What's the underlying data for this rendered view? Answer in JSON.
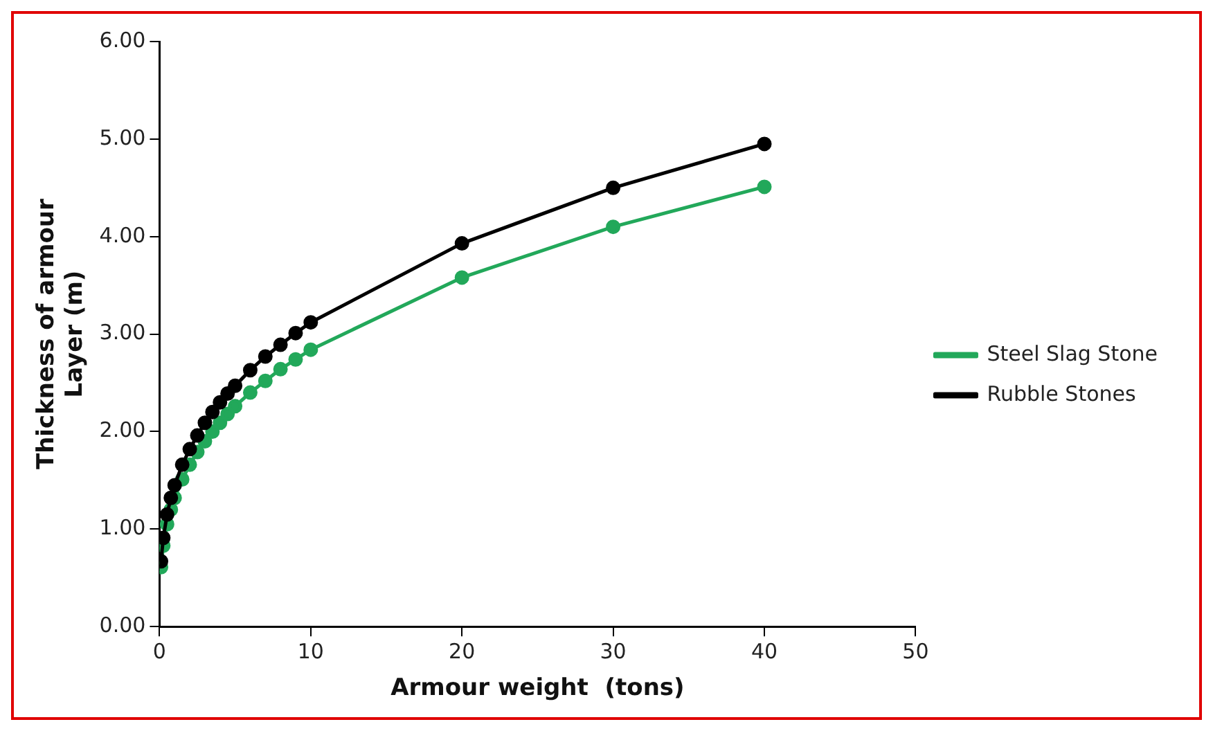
{
  "chart_data": {
    "type": "line",
    "xlabel": "Armour weight  (tons)",
    "ylabel": "Thickness of armour Layer (m)",
    "xlim": [
      0,
      50
    ],
    "xticks": [
      0,
      10,
      20,
      30,
      40,
      50
    ],
    "ylim": [
      0,
      6
    ],
    "yticks": [
      {
        "value": 0,
        "label": "0.00"
      },
      {
        "value": 1,
        "label": "1.00"
      },
      {
        "value": 2,
        "label": "2.00"
      },
      {
        "value": 3,
        "label": "3.00"
      },
      {
        "value": 4,
        "label": "4.00"
      },
      {
        "value": 5,
        "label": "5.00"
      },
      {
        "value": 6,
        "label": "6.00"
      }
    ],
    "x": [
      0.1,
      0.25,
      0.5,
      0.75,
      1,
      1.5,
      2,
      2.5,
      3,
      3.5,
      4,
      4.5,
      5,
      6,
      7,
      8,
      9,
      10,
      20,
      30,
      40
    ],
    "series": [
      {
        "name": "Steel Slag Stone",
        "color": "#22a85a",
        "values": [
          0.61,
          0.83,
          1.05,
          1.2,
          1.32,
          1.51,
          1.66,
          1.79,
          1.9,
          2.0,
          2.09,
          2.18,
          2.26,
          2.4,
          2.52,
          2.64,
          2.74,
          2.84,
          3.58,
          4.1,
          4.51
        ]
      },
      {
        "name": "Rubble Stones",
        "color": "#000000",
        "values": [
          0.67,
          0.91,
          1.15,
          1.32,
          1.45,
          1.66,
          1.82,
          1.96,
          2.09,
          2.2,
          2.3,
          2.39,
          2.47,
          2.63,
          2.77,
          2.89,
          3.01,
          3.12,
          3.93,
          4.5,
          4.95
        ]
      }
    ],
    "marker": "circle",
    "line_style": "solid",
    "grid": false,
    "legend": "right"
  }
}
